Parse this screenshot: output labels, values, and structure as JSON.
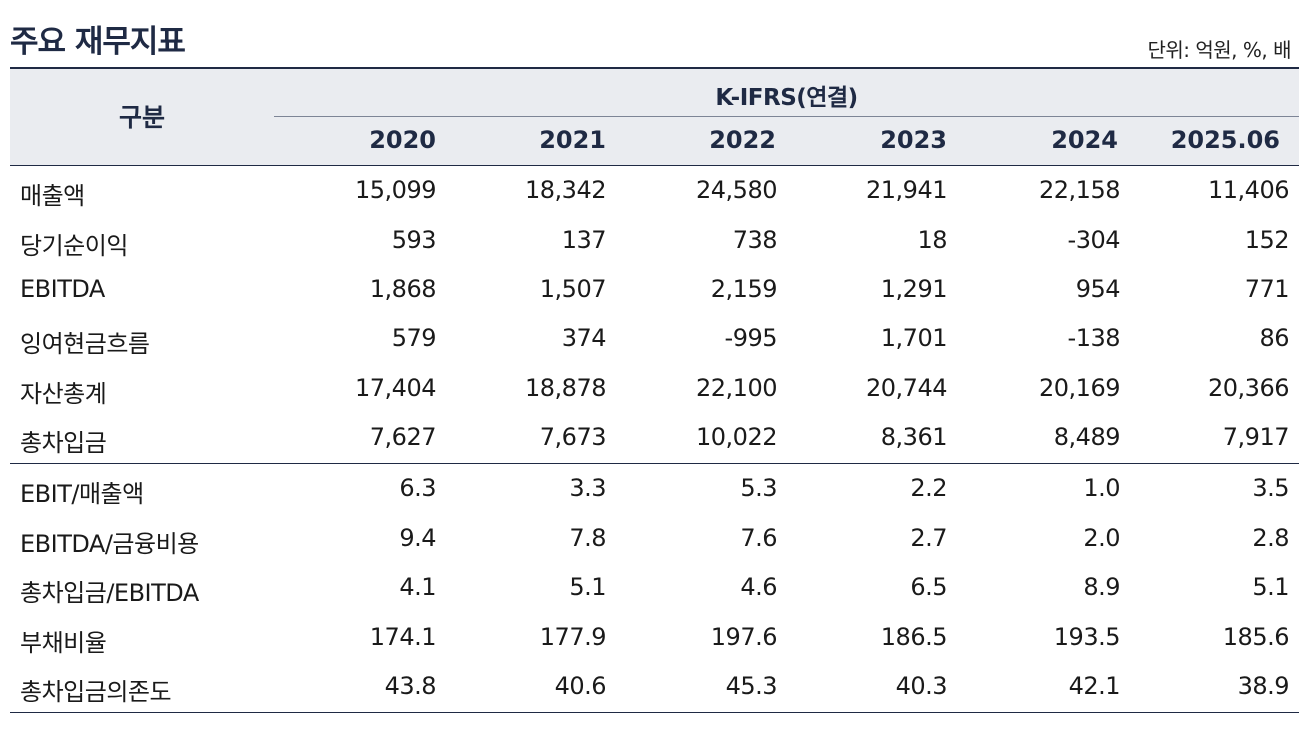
{
  "title": "주요 재무지표",
  "unit": "단위: 억원, %, 배",
  "header": {
    "category_label": "구분",
    "group_label": "K-IFRS(연결)",
    "years": [
      "2020",
      "2021",
      "2022",
      "2023",
      "2024",
      "2025.06"
    ]
  },
  "rows": [
    {
      "label": "매출액",
      "values": [
        "15,099",
        "18,342",
        "24,580",
        "21,941",
        "22,158",
        "11,406"
      ]
    },
    {
      "label": "당기순이익",
      "values": [
        "593",
        "137",
        "738",
        "18",
        "-304",
        "152"
      ]
    },
    {
      "label": "EBITDA",
      "values": [
        "1,868",
        "1,507",
        "2,159",
        "1,291",
        "954",
        "771"
      ]
    },
    {
      "label": "잉여현금흐름",
      "values": [
        "579",
        "374",
        "-995",
        "1,701",
        "-138",
        "86"
      ]
    },
    {
      "label": "자산총계",
      "values": [
        "17,404",
        "18,878",
        "22,100",
        "20,744",
        "20,169",
        "20,366"
      ]
    },
    {
      "label": "총차입금",
      "values": [
        "7,627",
        "7,673",
        "10,022",
        "8,361",
        "8,489",
        "7,917"
      ]
    },
    {
      "label": "EBIT/매출액",
      "values": [
        "6.3",
        "3.3",
        "5.3",
        "2.2",
        "1.0",
        "3.5"
      ]
    },
    {
      "label": "EBITDA/금융비용",
      "values": [
        "9.4",
        "7.8",
        "7.6",
        "2.7",
        "2.0",
        "2.8"
      ]
    },
    {
      "label": "총차입금/EBITDA",
      "values": [
        "4.1",
        "5.1",
        "4.6",
        "6.5",
        "8.9",
        "5.1"
      ]
    },
    {
      "label": "부채비율",
      "values": [
        "174.1",
        "177.9",
        "197.6",
        "186.5",
        "193.5",
        "185.6"
      ]
    },
    {
      "label": "총차입금의존도",
      "values": [
        "43.8",
        "40.6",
        "45.3",
        "40.3",
        "42.1",
        "38.9"
      ]
    }
  ]
}
